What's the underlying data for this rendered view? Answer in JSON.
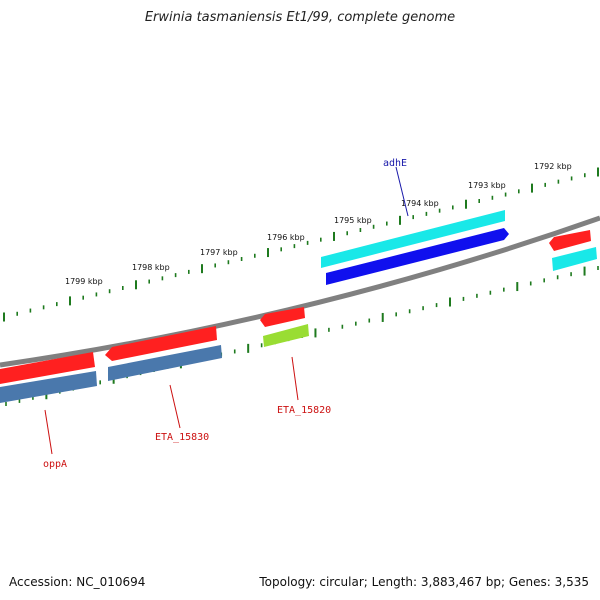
{
  "title": "Erwinia tasmaniensis Et1/99, complete genome",
  "accession": "Accession: NC_010694",
  "summary": "Topology: circular; Length: 3,883,467 bp; Genes: 3,535",
  "ruler_labels": [
    "1792 kbp",
    "1793 kbp",
    "1794 kbp",
    "1795 kbp",
    "1796 kbp",
    "1797 kbp",
    "1798 kbp",
    "1799 kbp"
  ],
  "gene_labels": {
    "adhE": "adhE",
    "eta15820": "ETA_15820",
    "eta15830": "ETA_15830",
    "oppA": "oppA"
  },
  "colors": {
    "backbone": "#808080",
    "tick": "#1e7a1e",
    "red": "#ff2020",
    "steel": "#4a78ac",
    "cyan": "#19e8e8",
    "blue": "#1010ee",
    "lime": "#99dd33",
    "label_blue": "#1a1aaa",
    "label_red": "#cc1111"
  }
}
